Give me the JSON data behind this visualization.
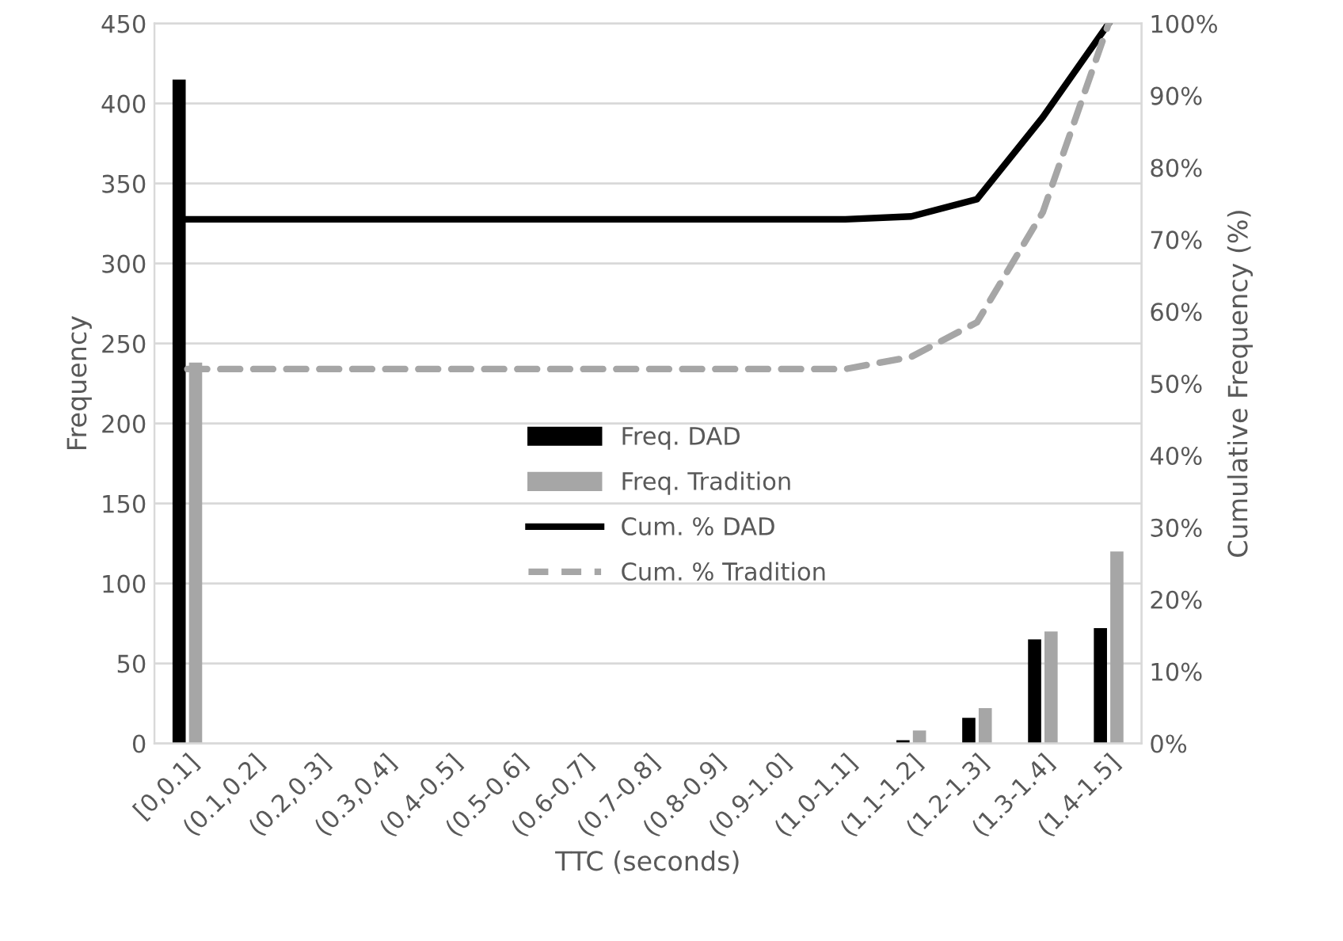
{
  "chart_data": {
    "type": "bar",
    "xlabel": "TTC (seconds)",
    "ylabel": "Frequency",
    "y2label": "Cumulative Frequency (%)",
    "categories": [
      "[0,0.1]",
      "(0.1,0.2]",
      "(0.2,0.3]",
      "(0.3,0.4]",
      "(0.4-0.5]",
      "(0.5-0.6]",
      "(0.6-0.7]",
      "(0.7-0.8]",
      "(0.8-0.9]",
      "(0.9-1.0]",
      "(1.0-1.1]",
      "(1.1-1.2]",
      "(1.2-1.3]",
      "(1.3-1.4]",
      "(1.4-1.5]"
    ],
    "series": [
      {
        "name": "Freq. DAD",
        "color": "#000000",
        "values": [
          415,
          0,
          0,
          0,
          0,
          0,
          0,
          0,
          0,
          0,
          0,
          2,
          16,
          65,
          72
        ]
      },
      {
        "name": "Freq. Tradition",
        "color": "#a6a6a6",
        "values": [
          238,
          0,
          0,
          0,
          0,
          0,
          0,
          0,
          0,
          0,
          0,
          8,
          22,
          70,
          120
        ]
      },
      {
        "name": "Cum. % DAD",
        "type": "line",
        "axis": "y2",
        "color": "#000000",
        "line_style": "solid",
        "values": [
          72.8,
          72.8,
          72.8,
          72.8,
          72.8,
          72.8,
          72.8,
          72.8,
          72.8,
          72.8,
          72.8,
          73.2,
          75.6,
          87.0,
          100
        ]
      },
      {
        "name": "Cum. % Tradition",
        "type": "line",
        "axis": "y2",
        "color": "#a6a6a6",
        "line_style": "dashed",
        "values": [
          52.0,
          52.0,
          52.0,
          52.0,
          52.0,
          52.0,
          52.0,
          52.0,
          52.0,
          52.0,
          52.0,
          53.7,
          58.5,
          73.8,
          100
        ]
      }
    ],
    "ylim": [
      0,
      450
    ],
    "yticks": [
      0,
      50,
      100,
      150,
      200,
      250,
      300,
      350,
      400,
      450
    ],
    "y2lim": [
      0,
      100
    ],
    "y2ticks": [
      {
        "value": 0,
        "label": "0%"
      },
      {
        "value": 10,
        "label": "10%"
      },
      {
        "value": 20,
        "label": "20%"
      },
      {
        "value": 30,
        "label": "30%"
      },
      {
        "value": 40,
        "label": "40%"
      },
      {
        "value": 50,
        "label": "50%"
      },
      {
        "value": 60,
        "label": "60%"
      },
      {
        "value": 70,
        "label": "70%"
      },
      {
        "value": 80,
        "label": "80%"
      },
      {
        "value": 90,
        "label": "90%"
      },
      {
        "value": 100,
        "label": "100%"
      }
    ],
    "grid": "y",
    "legend": "center"
  }
}
